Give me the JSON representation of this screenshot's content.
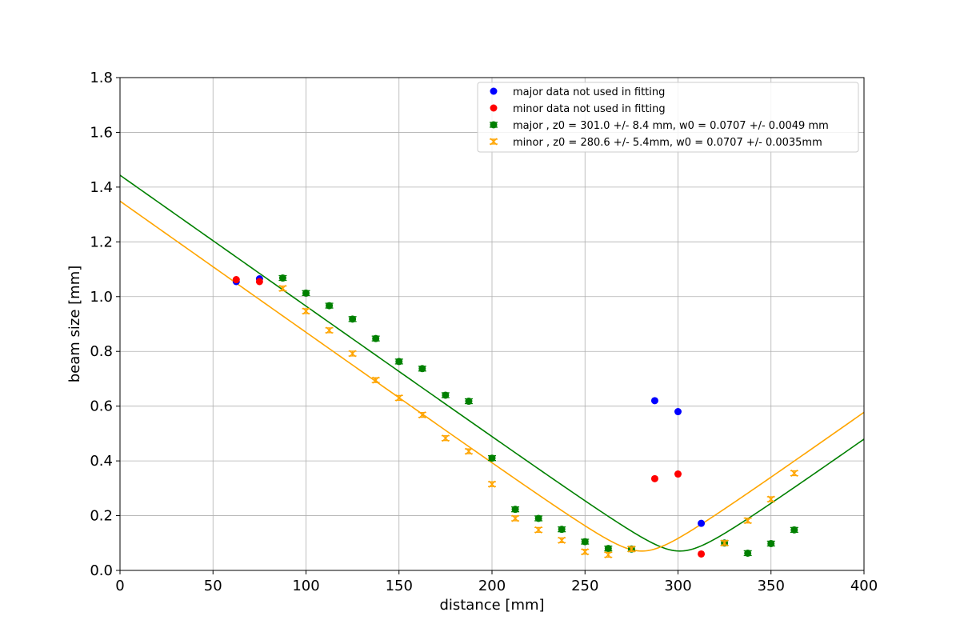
{
  "chart_data": {
    "type": "scatter",
    "xlabel": "distance [mm]",
    "ylabel": "beam size [mm]",
    "xlim": [
      0,
      400
    ],
    "ylim": [
      0,
      1.8
    ],
    "xticks": [
      "0",
      "50",
      "100",
      "150",
      "200",
      "250",
      "300",
      "350",
      "400"
    ],
    "yticks": [
      "0.0",
      "0.2",
      "0.4",
      "0.6",
      "0.8",
      "1.0",
      "1.2",
      "1.4",
      "1.6",
      "1.8"
    ],
    "grid": true,
    "legend_position": "top-right",
    "colors": {
      "major": "#008000",
      "minor": "#FFA500",
      "major_unused": "#0000FF",
      "minor_unused": "#FF0000"
    },
    "series": [
      {
        "name": "major data not used in fitting",
        "kind": "points",
        "color": "#0000FF",
        "marker": "circle",
        "points": [
          [
            62.5,
            1.055
          ],
          [
            75,
            1.065
          ],
          [
            287.5,
            0.62
          ],
          [
            300,
            0.58
          ],
          [
            312.5,
            0.172
          ]
        ]
      },
      {
        "name": "minor data not used in fitting",
        "kind": "points",
        "color": "#FF0000",
        "marker": "circle",
        "points": [
          [
            62.5,
            1.062
          ],
          [
            75,
            1.055
          ],
          [
            287.5,
            0.335
          ],
          [
            300,
            0.352
          ],
          [
            312.5,
            0.06
          ]
        ]
      },
      {
        "name": "major  , z0 = 301.0 +/- 8.4 mm, w0 = 0.0707 +/- 0.0049 mm",
        "kind": "errorbar",
        "color": "#008000",
        "marker": "circle",
        "points": [
          [
            87.5,
            1.068
          ],
          [
            100,
            1.013
          ],
          [
            112.5,
            0.967
          ],
          [
            125,
            0.918
          ],
          [
            137.5,
            0.847
          ],
          [
            150,
            0.763
          ],
          [
            162.5,
            0.737
          ],
          [
            175,
            0.64
          ],
          [
            187.5,
            0.618
          ],
          [
            200,
            0.41
          ],
          [
            212.5,
            0.223
          ],
          [
            225,
            0.19
          ],
          [
            237.5,
            0.15
          ],
          [
            250,
            0.105
          ],
          [
            262.5,
            0.08
          ],
          [
            275,
            0.078
          ],
          [
            325,
            0.1
          ],
          [
            337.5,
            0.063
          ],
          [
            350,
            0.098
          ],
          [
            362.5,
            0.148
          ]
        ]
      },
      {
        "name": "minor  , z0 = 280.6 +/- 5.4mm, w0 = 0.0707 +/- 0.0035mm",
        "kind": "errorbar",
        "color": "#FFA500",
        "marker": "x",
        "points": [
          [
            87.5,
            1.03
          ],
          [
            100,
            0.947
          ],
          [
            112.5,
            0.877
          ],
          [
            125,
            0.792
          ],
          [
            137.5,
            0.695
          ],
          [
            150,
            0.63
          ],
          [
            162.5,
            0.568
          ],
          [
            175,
            0.483
          ],
          [
            187.5,
            0.435
          ],
          [
            200,
            0.315
          ],
          [
            212.5,
            0.19
          ],
          [
            225,
            0.148
          ],
          [
            237.5,
            0.11
          ],
          [
            250,
            0.068
          ],
          [
            262.5,
            0.057
          ],
          [
            275,
            0.078
          ],
          [
            325,
            0.1
          ],
          [
            337.5,
            0.182
          ],
          [
            350,
            0.26
          ],
          [
            362.5,
            0.355
          ]
        ]
      }
    ],
    "fit_curves": [
      {
        "series": "major",
        "color": "#008000",
        "z0": 301.0,
        "w0": 0.0707,
        "slope": 0.00479
      },
      {
        "series": "minor",
        "color": "#FFA500",
        "z0": 280.6,
        "w0": 0.0707,
        "slope": 0.0048
      }
    ]
  }
}
